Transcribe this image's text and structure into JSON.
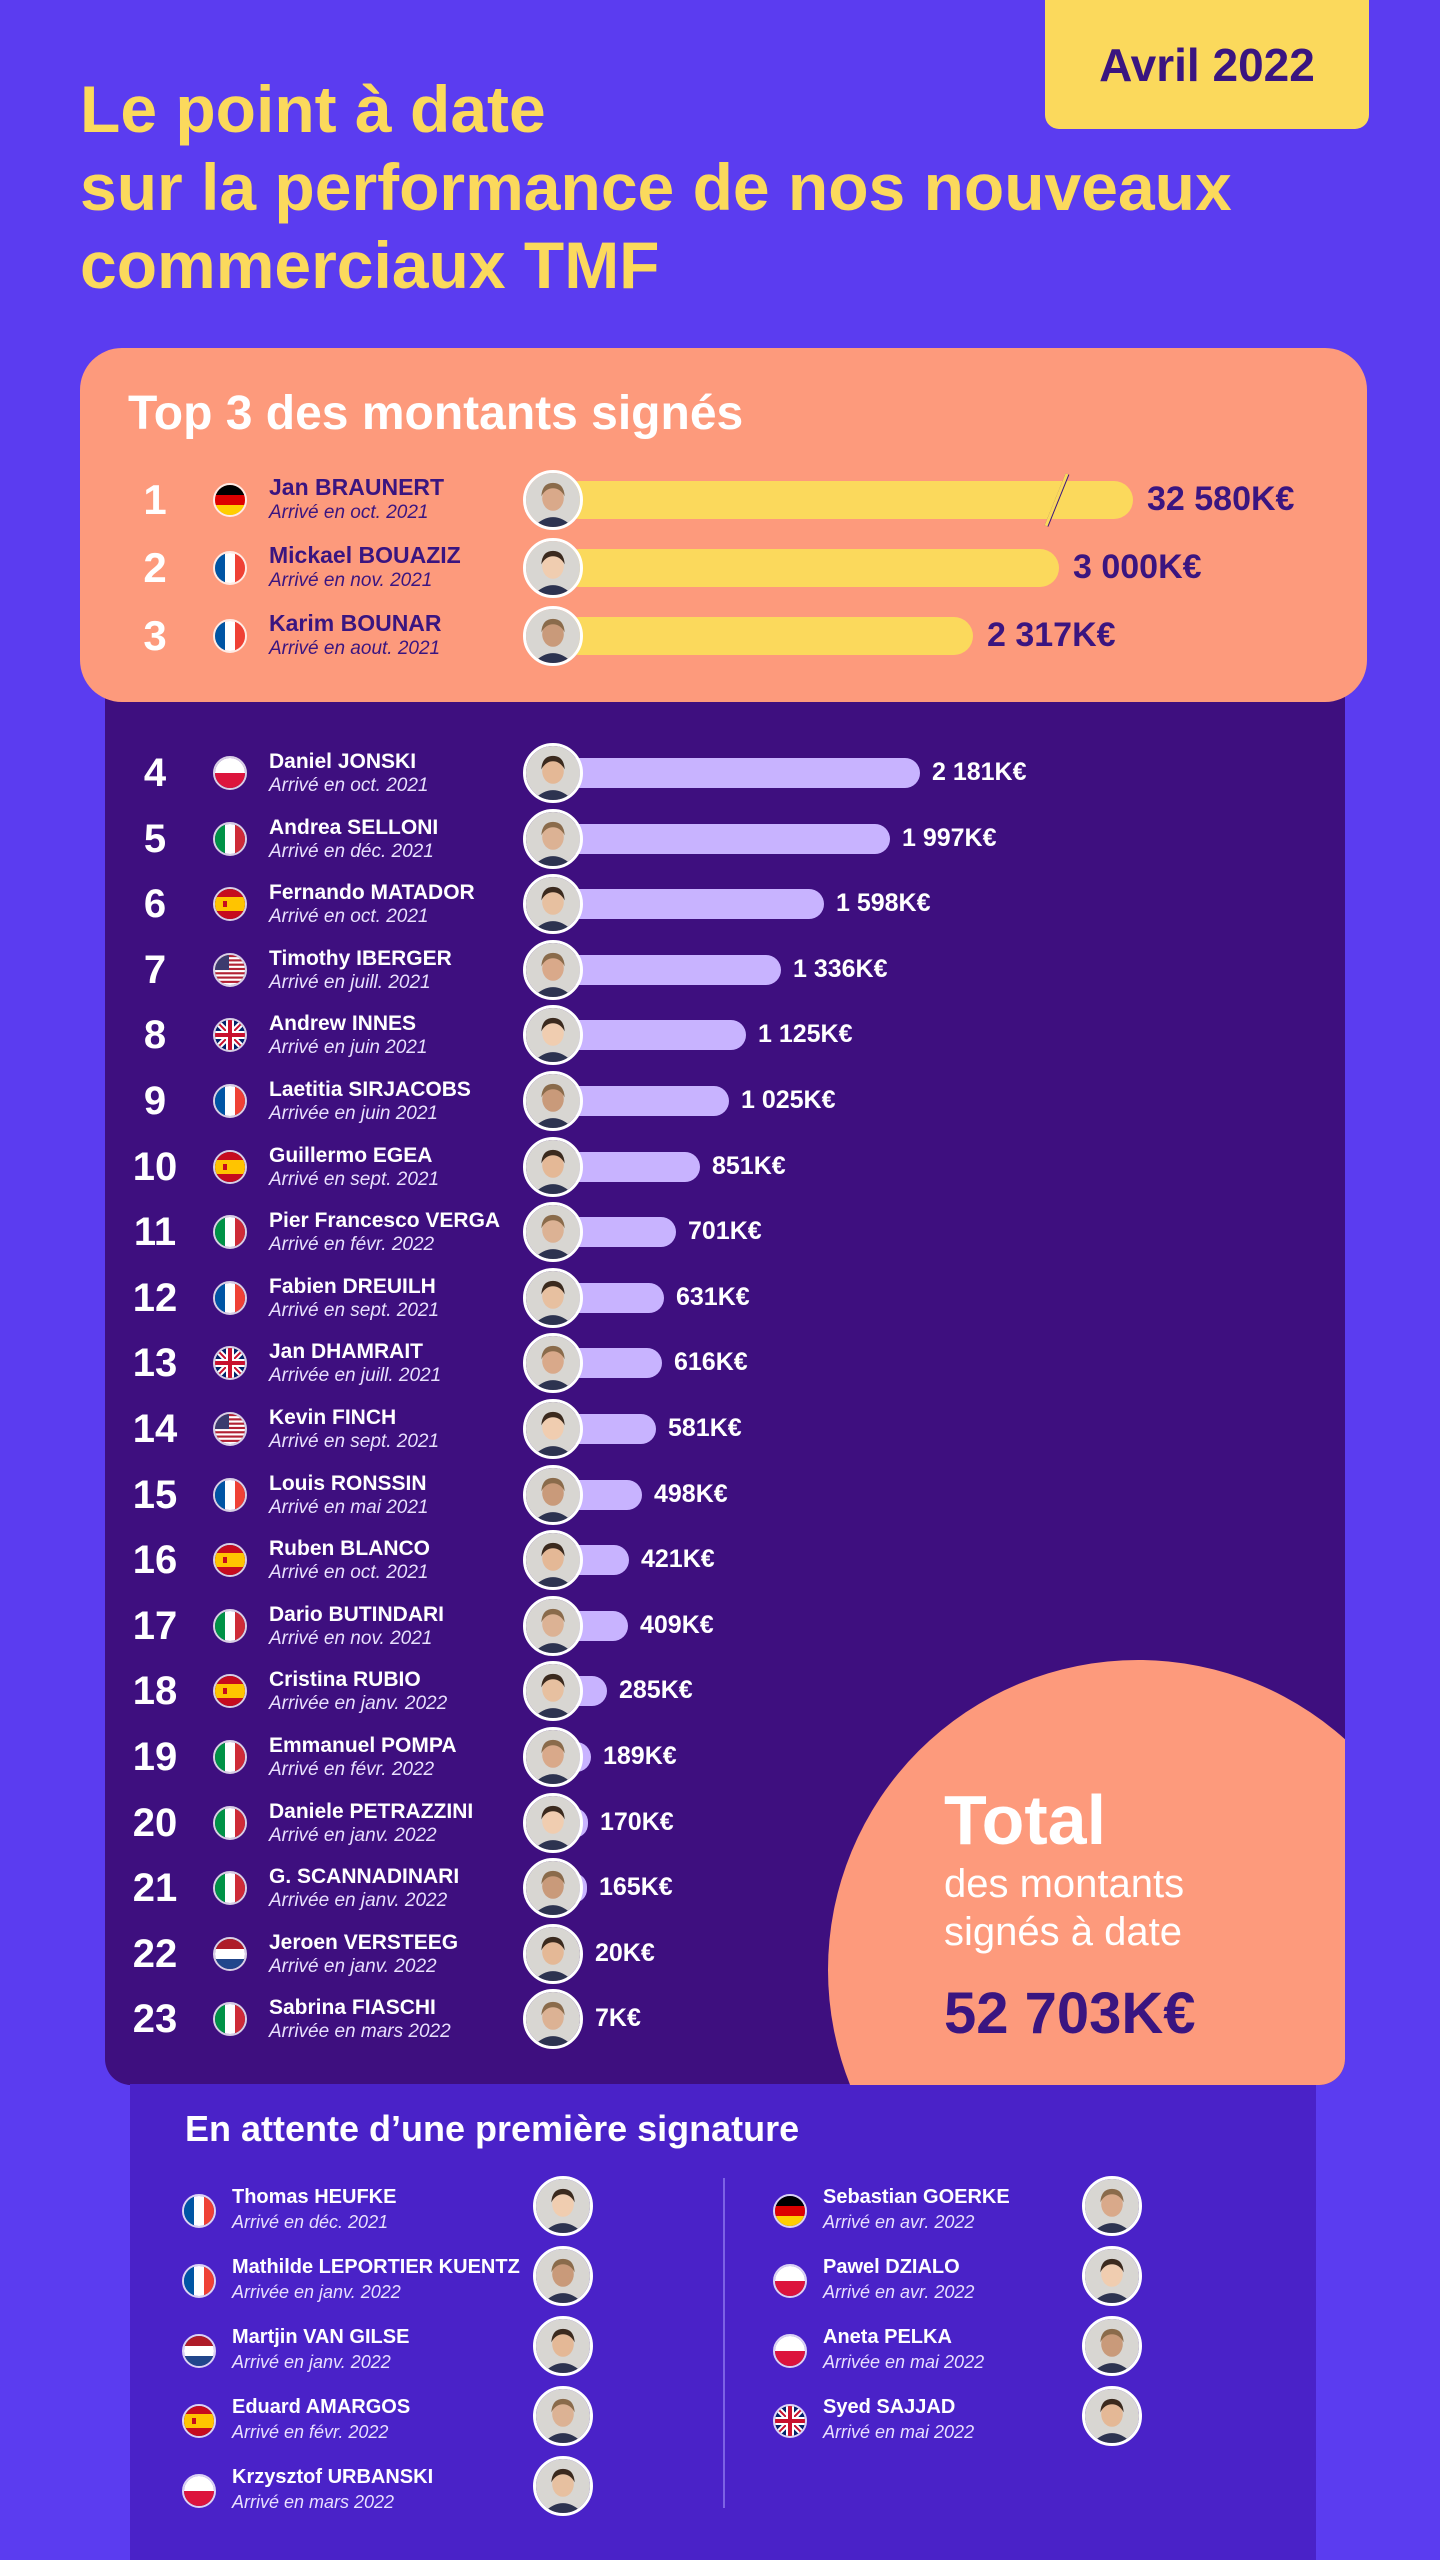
{
  "header": {
    "date": "Avril 2022",
    "title_lines": [
      "Le point à date",
      "sur la performance de nos nouveaux",
      "commerciaux TMF"
    ]
  },
  "top3": {
    "title": "Top 3 des montants signés",
    "rows": [
      {
        "rank": "1",
        "flag": "germany",
        "name": "Jan BRAUNERT",
        "arrival": "Arrivé en oct. 2021",
        "amount": "32 580K€",
        "bar_fraction": 1.0,
        "axis_break": true
      },
      {
        "rank": "2",
        "flag": "france",
        "name": "Mickael BOUAZIZ",
        "arrival": "Arrivé en nov. 2021",
        "amount": "3 000K€",
        "bar_fraction": 0.87
      },
      {
        "rank": "3",
        "flag": "france",
        "name": "Karim BOUNAR",
        "arrival": "Arrivé en aout. 2021",
        "amount": "2 317K€",
        "bar_fraction": 0.72
      }
    ]
  },
  "ranking": {
    "rows": [
      {
        "rank": "4",
        "flag": "poland",
        "name": "Daniel JONSKI",
        "arrival": "Arrivé en oct. 2021",
        "amount": "2 181K€",
        "value": 2181
      },
      {
        "rank": "5",
        "flag": "italy",
        "name": "Andrea SELLONI",
        "arrival": "Arrivé en déc. 2021",
        "amount": "1 997K€",
        "value": 1997
      },
      {
        "rank": "6",
        "flag": "spain",
        "name": "Fernando MATADOR",
        "arrival": "Arrivé en oct. 2021",
        "amount": "1 598K€",
        "value": 1598
      },
      {
        "rank": "7",
        "flag": "usa",
        "name": "Timothy IBERGER",
        "arrival": "Arrivé en juill. 2021",
        "amount": "1 336K€",
        "value": 1336
      },
      {
        "rank": "8",
        "flag": "uk",
        "name": "Andrew INNES",
        "arrival": "Arrivé en juin 2021",
        "amount": "1 125K€",
        "value": 1125
      },
      {
        "rank": "9",
        "flag": "france",
        "name": "Laetitia SIRJACOBS",
        "arrival": "Arrivée en juin 2021",
        "amount": "1 025K€",
        "value": 1025
      },
      {
        "rank": "10",
        "flag": "spain",
        "name": "Guillermo EGEA",
        "arrival": "Arrivé en sept. 2021",
        "amount": "851K€",
        "value": 851
      },
      {
        "rank": "11",
        "flag": "italy",
        "name": "Pier Francesco VERGA",
        "arrival": "Arrivé en févr. 2022",
        "amount": "701K€",
        "value": 701
      },
      {
        "rank": "12",
        "flag": "france",
        "name": "Fabien DREUILH",
        "arrival": "Arrivé en sept. 2021",
        "amount": "631K€",
        "value": 631
      },
      {
        "rank": "13",
        "flag": "uk",
        "name": "Jan DHAMRAIT",
        "arrival": "Arrivée en juill. 2021",
        "amount": "616K€",
        "value": 616
      },
      {
        "rank": "14",
        "flag": "usa",
        "name": "Kevin FINCH",
        "arrival": "Arrivé en sept. 2021",
        "amount": "581K€",
        "value": 581
      },
      {
        "rank": "15",
        "flag": "france",
        "name": "Louis RONSSIN",
        "arrival": "Arrivé en mai 2021",
        "amount": "498K€",
        "value": 498
      },
      {
        "rank": "16",
        "flag": "spain",
        "name": "Ruben BLANCO",
        "arrival": "Arrivé en oct. 2021",
        "amount": "421K€",
        "value": 421
      },
      {
        "rank": "17",
        "flag": "italy",
        "name": "Dario BUTINDARI",
        "arrival": "Arrivé en nov. 2021",
        "amount": "409K€",
        "value": 409
      },
      {
        "rank": "18",
        "flag": "spain",
        "name": "Cristina RUBIO",
        "arrival": "Arrivée en janv. 2022",
        "amount": "285K€",
        "value": 285
      },
      {
        "rank": "19",
        "flag": "italy",
        "name": "Emmanuel POMPA",
        "arrival": "Arrivé en févr. 2022",
        "amount": "189K€",
        "value": 189
      },
      {
        "rank": "20",
        "flag": "italy",
        "name": "Daniele PETRAZZINI",
        "arrival": "Arrivé en janv. 2022",
        "amount": "170K€",
        "value": 170
      },
      {
        "rank": "21",
        "flag": "italy",
        "name": "G. SCANNADINARI",
        "arrival": "Arrivée en janv. 2022",
        "amount": "165K€",
        "value": 165
      },
      {
        "rank": "22",
        "flag": "netherlands",
        "name": "Jeroen VERSTEEG",
        "arrival": "Arrivé en janv. 2022",
        "amount": "20K€",
        "value": 20
      },
      {
        "rank": "23",
        "flag": "italy",
        "name": "Sabrina FIASCHI",
        "arrival": "Arrivée en mars 2022",
        "amount": "7K€",
        "value": 7
      }
    ]
  },
  "total": {
    "title": "Total",
    "subtitle": "des montants signés à date",
    "amount": "52 703K€"
  },
  "waiting": {
    "title": "En attente d’une première signature",
    "left": [
      {
        "flag": "france",
        "name": "Thomas HEUFKE",
        "arrival": "Arrivé en déc. 2021"
      },
      {
        "flag": "france",
        "name": "Mathilde LEPORTIER KUENTZ",
        "arrival": "Arrivée en janv. 2022"
      },
      {
        "flag": "netherlands",
        "name": "Martjin VAN GILSE",
        "arrival": "Arrivé en janv. 2022"
      },
      {
        "flag": "spain",
        "name": "Eduard AMARGOS",
        "arrival": "Arrivé en févr. 2022"
      },
      {
        "flag": "poland",
        "name": "Krzysztof URBANSKI",
        "arrival": "Arrivé en mars 2022"
      }
    ],
    "right": [
      {
        "flag": "germany",
        "name": "Sebastian GOERKE",
        "arrival": "Arrivé en avr. 2022"
      },
      {
        "flag": "poland",
        "name": "Pawel DZIALO",
        "arrival": "Arrivé en avr. 2022"
      },
      {
        "flag": "poland",
        "name": "Aneta PELKA",
        "arrival": "Arrivée en mai 2022"
      },
      {
        "flag": "uk",
        "name": "Syed SAJJAD",
        "arrival": "Arrivé en mai 2022"
      }
    ]
  },
  "colors": {
    "background": "#5b3cf0",
    "accent_yellow": "#fbd95c",
    "salmon": "#fd9a7c",
    "dark_purple": "#3e0f7f",
    "text_dark": "#3a1580",
    "bar_lilac": "#c8b3ff"
  }
}
